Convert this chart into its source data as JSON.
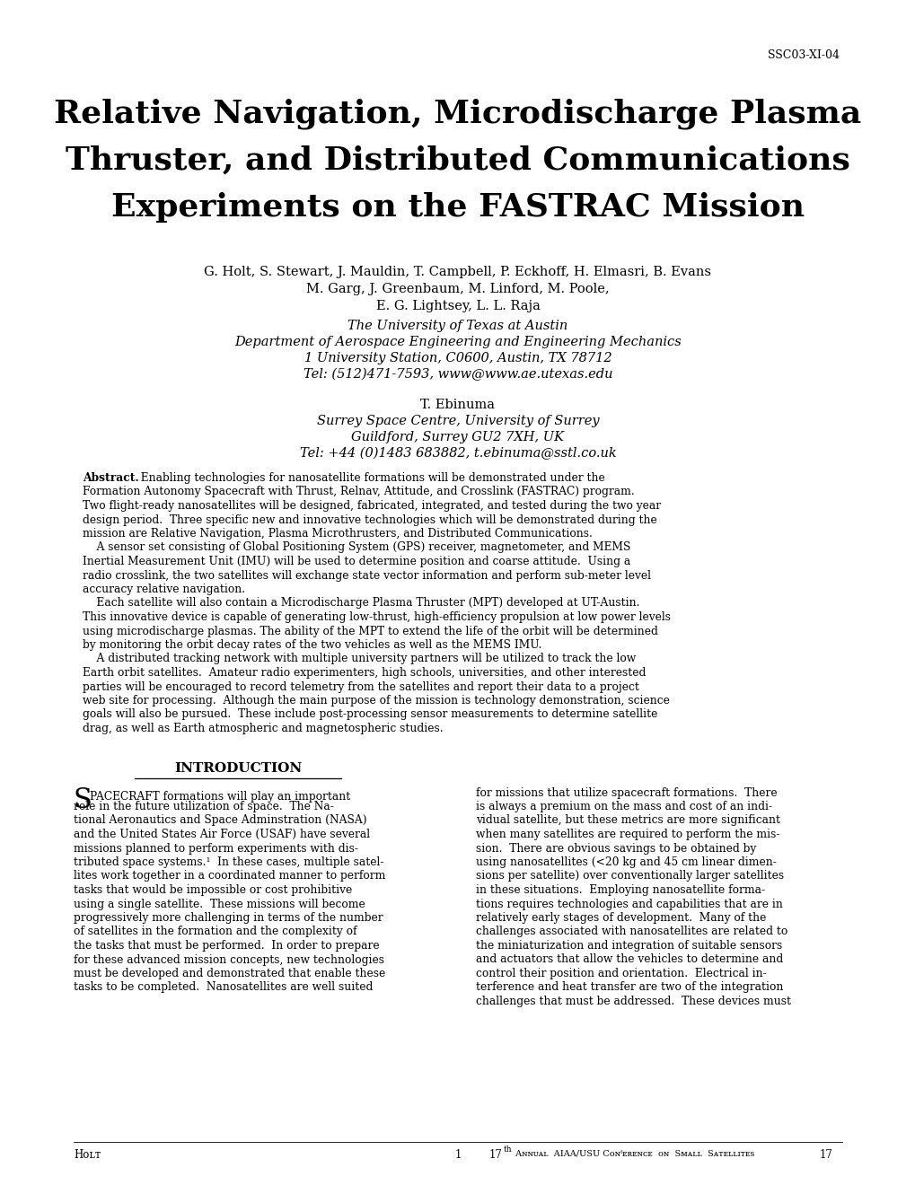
{
  "paper_id": "SSC03-XI-04",
  "title_line1": "Relative Navigation, Microdischarge Plasma",
  "title_line2": "Thruster, and Distributed Communications",
  "title_line3": "Experiments on the FASTRAC Mission",
  "authors_line1": "G. Holt, S. Stewart, J. Mauldin, T. Campbell, P. Eckhoff, H. Elmasri, B. Evans",
  "authors_line2": "M. Garg, J. Greenbaum, M. Linford, M. Poole,",
  "authors_line3": "E. G. Lightsey, L. L. Raja",
  "affil_line1": "The University of Texas at Austin",
  "affil_line2": "Department of Aerospace Engineering and Engineering Mechanics",
  "affil_line3": "1 University Station, C0600, Austin, TX 78712",
  "affil_line4": "Tel: (512)471-7593, www@www.ae.utexas.edu",
  "author2": "T. Ebinuma",
  "affil2_line1": "Surrey Space Centre, University of Surrey",
  "affil2_line2": "Guildford, Surrey GU2 7XH, UK",
  "affil2_line3": "Tel: +44 (0)1483 683882, t.ebinuma@sstl.co.uk",
  "section_title": "INTRODUCTION",
  "abs_para1_line1_bold": "Abstract.",
  "abs_para1_line1_rest": "  Enabling technologies for nanosatellite formations will be demonstrated under the",
  "abs_para1": [
    "Formation Autonomy Spacecraft with Thrust, Relnav, Attitude, and Crosslink (FASTRAC) program.",
    "Two flight-ready nanosatellites will be designed, fabricated, integrated, and tested during the two year",
    "design period.  Three specific new and innovative technologies which will be demonstrated during the",
    "mission are Relative Navigation, Plasma Microthrusters, and Distributed Communications."
  ],
  "abs_para2": [
    "    A sensor set consisting of Global Positioning System (GPS) receiver, magnetometer, and MEMS",
    "Inertial Measurement Unit (IMU) will be used to determine position and coarse attitude.  Using a",
    "radio crosslink, the two satellites will exchange state vector information and perform sub-meter level",
    "accuracy relative navigation."
  ],
  "abs_para3": [
    "    Each satellite will also contain a Microdischarge Plasma Thruster (MPT) developed at UT-Austin.",
    "This innovative device is capable of generating low-thrust, high-efficiency propulsion at low power levels",
    "using microdischarge plasmas. The ability of the MPT to extend the life of the orbit will be determined",
    "by monitoring the orbit decay rates of the two vehicles as well as the MEMS IMU."
  ],
  "abs_para4": [
    "    A distributed tracking network with multiple university partners will be utilized to track the low",
    "Earth orbit satellites.  Amateur radio experimenters, high schools, universities, and other interested",
    "parties will be encouraged to record telemetry from the satellites and report their data to a project",
    "web site for processing.  Although the main purpose of the mission is technology demonstration, science",
    "goals will also be pursued.  These include post-processing sensor measurements to determine satellite",
    "drag, as well as Earth atmospheric and magnetospheric studies."
  ],
  "col1_lines": [
    "role in the future utilization of space.  The Na-",
    "tional Aeronautics and Space Adminstration (NASA)",
    "and the United States Air Force (USAF) have several",
    "missions planned to perform experiments with dis-",
    "tributed space systems.¹  In these cases, multiple satel-",
    "lites work together in a coordinated manner to perform",
    "tasks that would be impossible or cost prohibitive",
    "using a single satellite.  These missions will become",
    "progressively more challenging in terms of the number",
    "of satellites in the formation and the complexity of",
    "the tasks that must be performed.  In order to prepare",
    "for these advanced mission concepts, new technologies",
    "must be developed and demonstrated that enable these",
    "tasks to be completed.  Nanosatellites are well suited"
  ],
  "col2_lines": [
    "for missions that utilize spacecraft formations.  There",
    "is always a premium on the mass and cost of an indi-",
    "vidual satellite, but these metrics are more significant",
    "when many satellites are required to perform the mis-",
    "sion.  There are obvious savings to be obtained by",
    "using nanosatellites (<20 kg and 45 cm linear dimen-",
    "sions per satellite) over conventionally larger satellites",
    "in these situations.  Employing nanosatellite forma-",
    "tions requires technologies and capabilities that are in",
    "relatively early stages of development.  Many of the",
    "challenges associated with nanosatellites are related to",
    "the miniaturization and integration of suitable sensors",
    "and actuators that allow the vehicles to determine and",
    "control their position and orientation.  Electrical in-",
    "terference and heat transfer are two of the integration",
    "challenges that must be addressed.  These devices must"
  ],
  "footer_left": "Holt",
  "footer_center": "1",
  "background_color": "#ffffff"
}
